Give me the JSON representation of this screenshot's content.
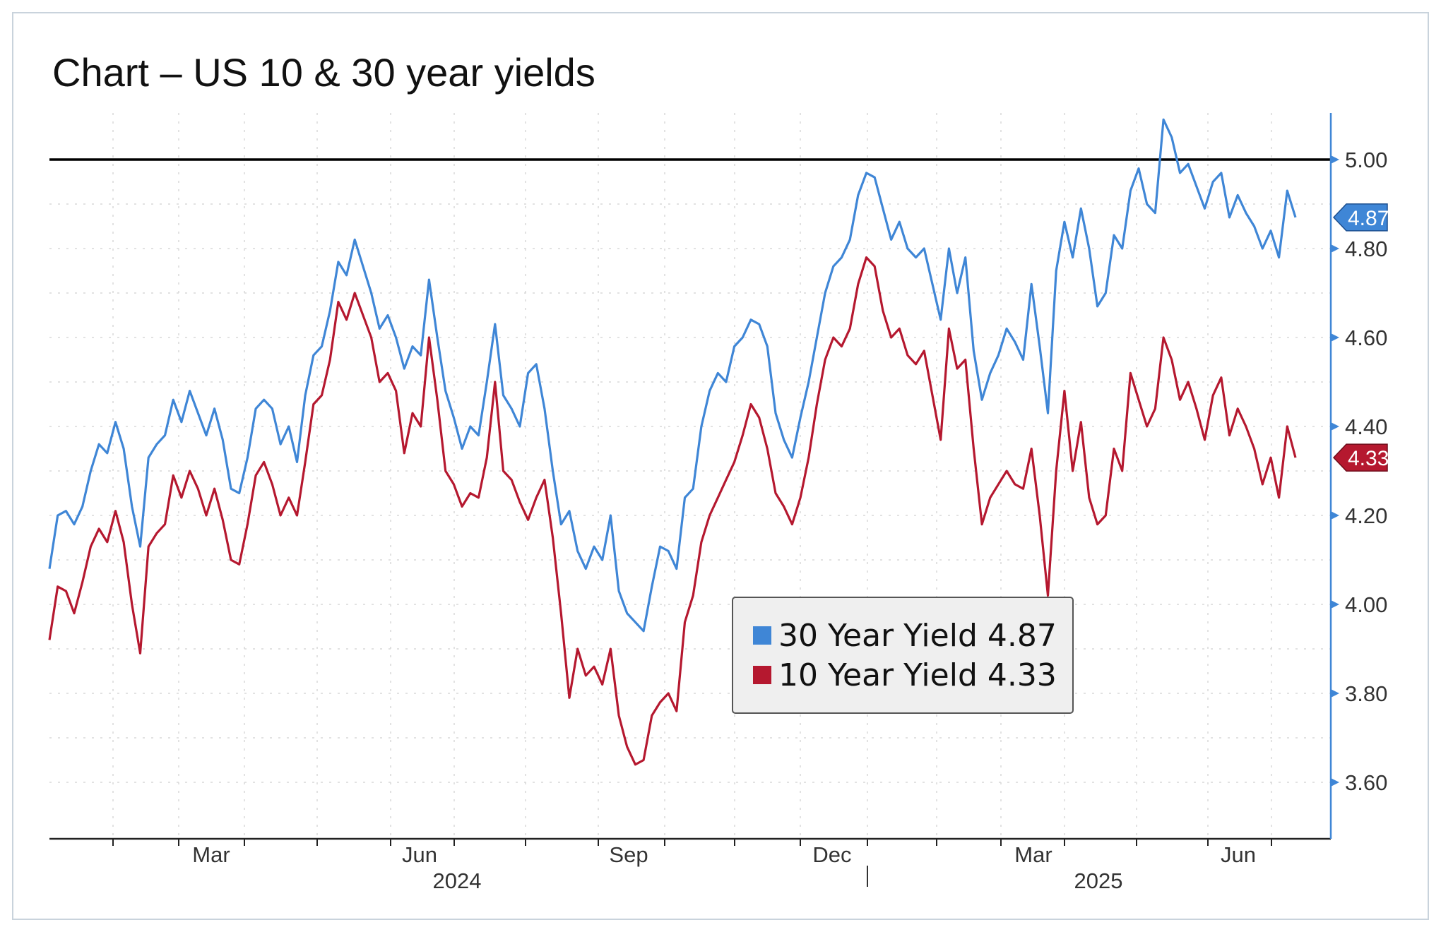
{
  "chart_data": {
    "type": "line",
    "title": "Chart – US 10 & 30 year yields",
    "ylim": [
      3.48,
      5.11
    ],
    "y_ticks": [
      "5.00",
      "4.80",
      "4.60",
      "4.40",
      "4.20",
      "4.00",
      "3.80",
      "3.60"
    ],
    "x_ticks": [
      "Mar",
      "Jun",
      "Sep",
      "Dec",
      "Mar",
      "Jun"
    ],
    "years": [
      "2024",
      "2025"
    ],
    "reference_line": 5.0,
    "grid": true,
    "legend_position": "center-right",
    "colors": {
      "series_30y": "#3f86d6",
      "series_10y": "#b5182f"
    },
    "series": [
      {
        "name": "30 Year Yield",
        "last_label": "4.87",
        "legend_label": "30 Year Yield 4.87",
        "values": [
          4.08,
          4.2,
          4.21,
          4.18,
          4.22,
          4.3,
          4.36,
          4.34,
          4.41,
          4.35,
          4.22,
          4.13,
          4.33,
          4.36,
          4.38,
          4.46,
          4.41,
          4.48,
          4.43,
          4.38,
          4.44,
          4.37,
          4.26,
          4.25,
          4.33,
          4.44,
          4.46,
          4.44,
          4.36,
          4.4,
          4.32,
          4.47,
          4.56,
          4.58,
          4.66,
          4.77,
          4.74,
          4.82,
          4.76,
          4.7,
          4.62,
          4.65,
          4.6,
          4.53,
          4.58,
          4.56,
          4.73,
          4.6,
          4.48,
          4.42,
          4.35,
          4.4,
          4.38,
          4.5,
          4.63,
          4.47,
          4.44,
          4.4,
          4.52,
          4.54,
          4.44,
          4.3,
          4.18,
          4.21,
          4.12,
          4.08,
          4.13,
          4.1,
          4.2,
          4.03,
          3.98,
          3.96,
          3.94,
          4.04,
          4.13,
          4.12,
          4.08,
          4.24,
          4.26,
          4.4,
          4.48,
          4.52,
          4.5,
          4.58,
          4.6,
          4.64,
          4.63,
          4.58,
          4.43,
          4.37,
          4.33,
          4.42,
          4.5,
          4.6,
          4.7,
          4.76,
          4.78,
          4.82,
          4.92,
          4.97,
          4.96,
          4.89,
          4.82,
          4.86,
          4.8,
          4.78,
          4.8,
          4.72,
          4.64,
          4.8,
          4.7,
          4.78,
          4.57,
          4.46,
          4.52,
          4.56,
          4.62,
          4.59,
          4.55,
          4.72,
          4.58,
          4.43,
          4.75,
          4.86,
          4.78,
          4.89,
          4.8,
          4.67,
          4.7,
          4.83,
          4.8,
          4.93,
          4.98,
          4.9,
          4.88,
          5.09,
          5.05,
          4.97,
          4.99,
          4.94,
          4.89,
          4.95,
          4.97,
          4.87,
          4.92,
          4.88,
          4.85,
          4.8,
          4.84,
          4.78,
          4.93,
          4.87
        ]
      },
      {
        "name": "10 Year Yield",
        "last_label": "4.33",
        "legend_label": "10 Year Yield 4.33",
        "values": [
          3.92,
          4.04,
          4.03,
          3.98,
          4.05,
          4.13,
          4.17,
          4.14,
          4.21,
          4.14,
          4.0,
          3.89,
          4.13,
          4.16,
          4.18,
          4.29,
          4.24,
          4.3,
          4.26,
          4.2,
          4.26,
          4.19,
          4.1,
          4.09,
          4.18,
          4.29,
          4.32,
          4.27,
          4.2,
          4.24,
          4.2,
          4.32,
          4.45,
          4.47,
          4.55,
          4.68,
          4.64,
          4.7,
          4.65,
          4.6,
          4.5,
          4.52,
          4.48,
          4.34,
          4.43,
          4.4,
          4.6,
          4.46,
          4.3,
          4.27,
          4.22,
          4.25,
          4.24,
          4.33,
          4.5,
          4.3,
          4.28,
          4.23,
          4.19,
          4.24,
          4.28,
          4.15,
          3.98,
          3.79,
          3.9,
          3.84,
          3.86,
          3.82,
          3.9,
          3.75,
          3.68,
          3.64,
          3.65,
          3.75,
          3.78,
          3.8,
          3.76,
          3.96,
          4.02,
          4.14,
          4.2,
          4.24,
          4.28,
          4.32,
          4.38,
          4.45,
          4.42,
          4.35,
          4.25,
          4.22,
          4.18,
          4.24,
          4.33,
          4.45,
          4.55,
          4.6,
          4.58,
          4.62,
          4.72,
          4.78,
          4.76,
          4.66,
          4.6,
          4.62,
          4.56,
          4.54,
          4.57,
          4.47,
          4.37,
          4.62,
          4.53,
          4.55,
          4.35,
          4.18,
          4.24,
          4.27,
          4.3,
          4.27,
          4.26,
          4.35,
          4.2,
          4.02,
          4.3,
          4.48,
          4.3,
          4.41,
          4.24,
          4.18,
          4.2,
          4.35,
          4.3,
          4.52,
          4.46,
          4.4,
          4.44,
          4.6,
          4.55,
          4.46,
          4.5,
          4.44,
          4.37,
          4.47,
          4.51,
          4.38,
          4.44,
          4.4,
          4.35,
          4.27,
          4.33,
          4.24,
          4.4,
          4.33
        ]
      }
    ]
  }
}
